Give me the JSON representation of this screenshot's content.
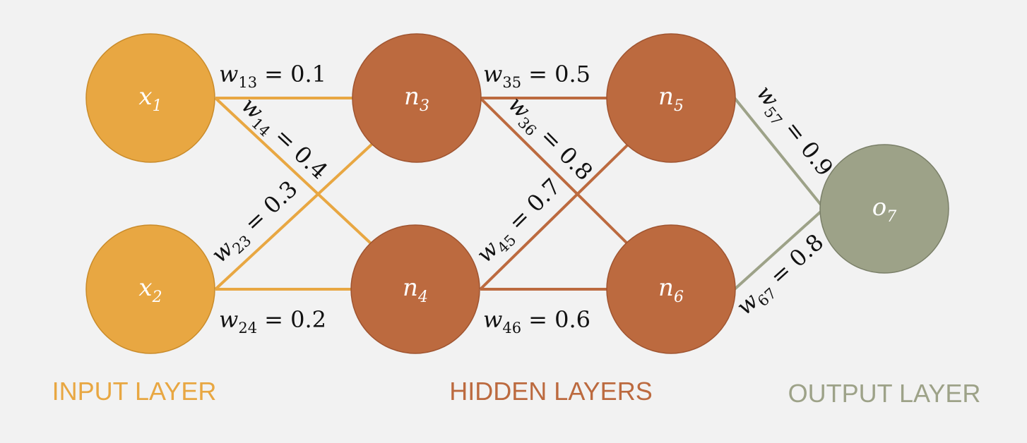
{
  "colors": {
    "input": "#e8a742",
    "hidden": "#bc6a3f",
    "output": "#9da288",
    "input_stroke": "#c98b2a",
    "hidden_stroke": "#9f5430",
    "output_stroke": "#7a7f68",
    "background": "#f2f2f2"
  },
  "nodes": {
    "x1": {
      "var": "x",
      "sub": "1"
    },
    "x2": {
      "var": "x",
      "sub": "2"
    },
    "n3": {
      "var": "n",
      "sub": "3"
    },
    "n4": {
      "var": "n",
      "sub": "4"
    },
    "n5": {
      "var": "n",
      "sub": "5"
    },
    "n6": {
      "var": "n",
      "sub": "6"
    },
    "o7": {
      "var": "o",
      "sub": "7"
    }
  },
  "weights": {
    "w13": {
      "sub": "13",
      "value": "= 0.1"
    },
    "w14": {
      "sub": "14",
      "value": "= 0.4"
    },
    "w23": {
      "sub": "23",
      "value": "= 0.3"
    },
    "w24": {
      "sub": "24",
      "value": "= 0.2"
    },
    "w35": {
      "sub": "35",
      "value": "= 0.5"
    },
    "w36": {
      "sub": "36",
      "value": "= 0.8"
    },
    "w45": {
      "sub": "45",
      "value": "= 0.7"
    },
    "w46": {
      "sub": "46",
      "value": "= 0.6"
    },
    "w57": {
      "sub": "57",
      "value": "= 0.9"
    },
    "w67": {
      "sub": "67",
      "value": "= 0.8"
    },
    "var": "w"
  },
  "layers": {
    "input": "INPUT LAYER",
    "hidden": "HIDDEN LAYERS",
    "output": "OUTPUT LAYER"
  }
}
